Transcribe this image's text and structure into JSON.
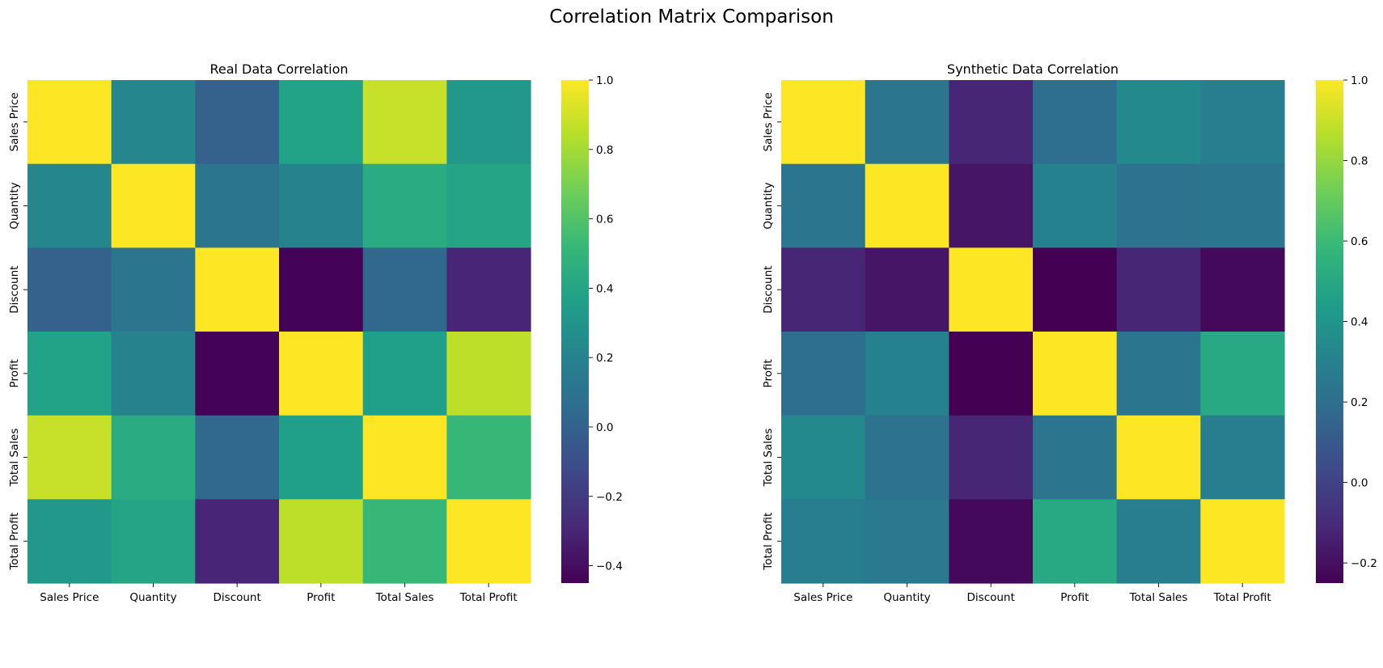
{
  "figure": {
    "title": "Correlation Matrix Comparison"
  },
  "chart_data": [
    {
      "type": "heatmap",
      "title": "Real Data Correlation",
      "xlabel": "",
      "ylabel": "",
      "x_categories": [
        "Sales Price",
        "Quantity",
        "Discount",
        "Profit",
        "Total Sales",
        "Total Profit"
      ],
      "y_categories": [
        "Sales Price",
        "Quantity",
        "Discount",
        "Profit",
        "Total Sales",
        "Total Profit"
      ],
      "values": [
        [
          1.0,
          0.22,
          0.0,
          0.38,
          0.88,
          0.32
        ],
        [
          0.22,
          1.0,
          0.12,
          0.2,
          0.44,
          0.4
        ],
        [
          0.0,
          0.12,
          1.0,
          -0.44,
          0.04,
          -0.3
        ],
        [
          0.38,
          0.2,
          -0.44,
          1.0,
          0.36,
          0.86
        ],
        [
          0.88,
          0.44,
          0.04,
          0.36,
          1.0,
          0.52
        ],
        [
          0.32,
          0.4,
          -0.3,
          0.86,
          0.52,
          1.0
        ]
      ],
      "colormap": "viridis",
      "vmin": -0.45,
      "vmax": 1.0,
      "colorbar_ticks": [
        "1.0",
        "0.8",
        "0.6",
        "0.4",
        "0.2",
        "0.0",
        "−0.2",
        "−0.4"
      ],
      "colorbar_tick_values": [
        1.0,
        0.8,
        0.6,
        0.4,
        0.2,
        0.0,
        -0.2,
        -0.4
      ]
    },
    {
      "type": "heatmap",
      "title": "Synthetic Data Correlation",
      "xlabel": "",
      "ylabel": "",
      "x_categories": [
        "Sales Price",
        "Quantity",
        "Discount",
        "Profit",
        "Total Sales",
        "Total Profit"
      ],
      "y_categories": [
        "Sales Price",
        "Quantity",
        "Discount",
        "Profit",
        "Total Sales",
        "Total Profit"
      ],
      "values": [
        [
          1.0,
          0.24,
          -0.12,
          0.2,
          0.34,
          0.28
        ],
        [
          0.24,
          1.0,
          -0.18,
          0.3,
          0.22,
          0.24
        ],
        [
          -0.12,
          -0.18,
          1.0,
          -0.25,
          -0.12,
          -0.22
        ],
        [
          0.2,
          0.3,
          -0.25,
          1.0,
          0.24,
          0.5
        ],
        [
          0.34,
          0.22,
          -0.12,
          0.24,
          1.0,
          0.28
        ],
        [
          0.28,
          0.26,
          -0.22,
          0.5,
          0.28,
          1.0
        ]
      ],
      "colormap": "viridis",
      "vmin": -0.25,
      "vmax": 1.0,
      "colorbar_ticks": [
        "1.0",
        "0.8",
        "0.6",
        "0.4",
        "0.2",
        "0.0",
        "−0.2"
      ],
      "colorbar_tick_values": [
        1.0,
        0.8,
        0.6,
        0.4,
        0.2,
        0.0,
        -0.2
      ]
    }
  ]
}
